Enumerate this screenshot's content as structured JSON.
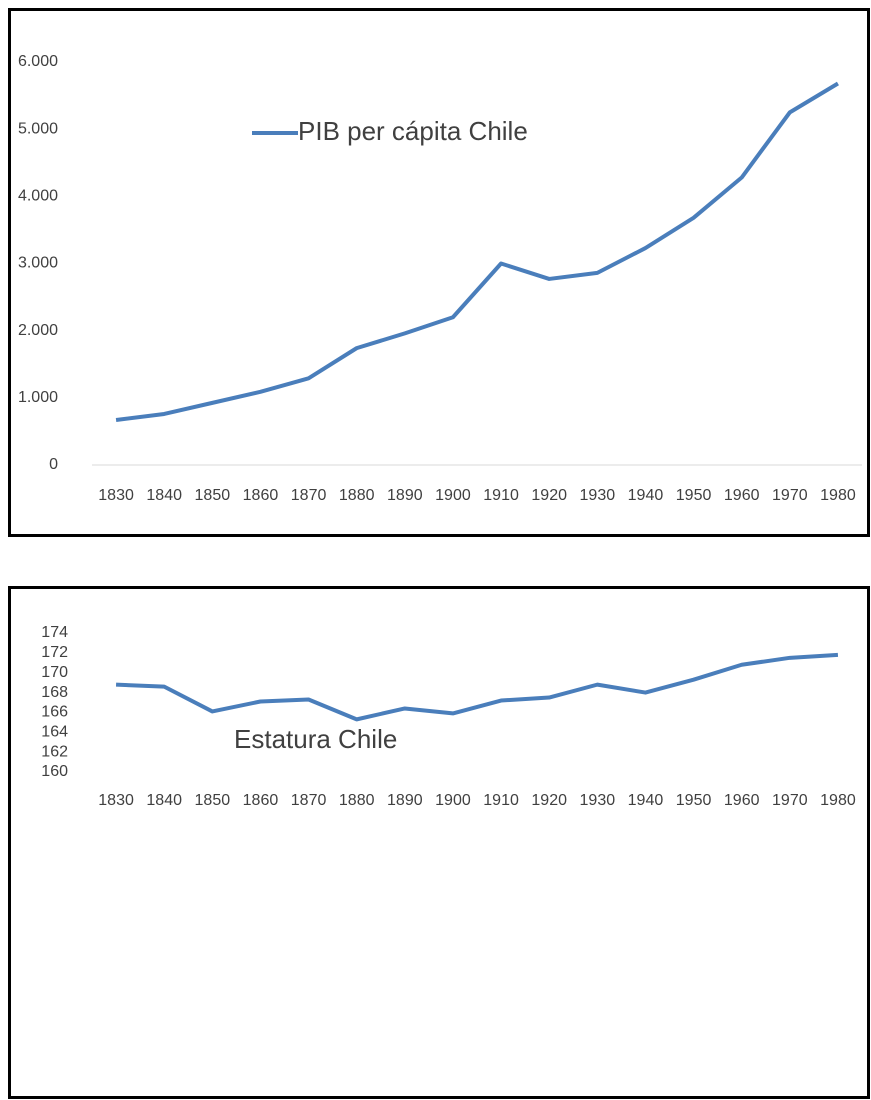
{
  "chart_data": [
    {
      "type": "line",
      "categories": [
        "1830",
        "1840",
        "1850",
        "1860",
        "1870",
        "1880",
        "1890",
        "1900",
        "1910",
        "1920",
        "1930",
        "1940",
        "1950",
        "1960",
        "1970",
        "1980"
      ],
      "series": [
        {
          "name": "PIB per cápita Chile",
          "color": "#4a7ebb",
          "values": [
            670,
            760,
            925,
            1090,
            1290,
            1740,
            1960,
            2200,
            3000,
            2770,
            2860,
            3230,
            3680,
            4280,
            5250,
            5680
          ]
        }
      ],
      "ylim": [
        0,
        6000
      ],
      "yticks": [
        0,
        {
          "value": 1000,
          "label": "1.000"
        },
        {
          "value": 2000,
          "label": "2.000"
        },
        {
          "value": 3000,
          "label": "3.000"
        },
        {
          "value": 4000,
          "label": "4.000"
        },
        {
          "value": 5000,
          "label": "5.000"
        },
        {
          "value": 6000,
          "label": "6.000"
        }
      ],
      "axis_line": true,
      "legend": "top center"
    },
    {
      "type": "line",
      "title": "Estatura Chile",
      "categories": [
        "1830",
        "1840",
        "1850",
        "1860",
        "1870",
        "1880",
        "1890",
        "1900",
        "1910",
        "1920",
        "1930",
        "1940",
        "1950",
        "1960",
        "1970",
        "1980"
      ],
      "series": [
        {
          "color": "#4a7ebb",
          "values": [
            168.8,
            168.6,
            166.1,
            167.1,
            167.3,
            165.3,
            166.4,
            165.9,
            167.2,
            167.5,
            168.8,
            168.0,
            169.3,
            170.8,
            171.5,
            171.8
          ]
        }
      ],
      "ylim": [
        160,
        174
      ],
      "yticks": [
        160,
        162,
        164,
        166,
        168,
        170,
        172,
        174
      ],
      "axis_line": false
    }
  ]
}
